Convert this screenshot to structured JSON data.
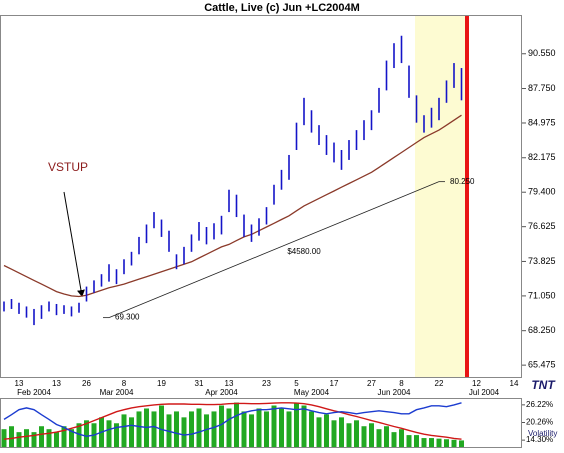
{
  "chart_data": [
    {
      "type": "ohlc",
      "title": "Cattle, Live (c) Jun +LC2004M",
      "categories": [
        null,
        null,
        "13",
        null,
        null,
        null,
        null,
        "13",
        null,
        null,
        null,
        "26",
        null,
        null,
        null,
        null,
        "8",
        null,
        null,
        null,
        null,
        "19",
        null,
        null,
        null,
        null,
        "31",
        null,
        null,
        null,
        "13",
        null,
        null,
        null,
        null,
        "23",
        null,
        null,
        null,
        "5",
        null,
        null,
        null,
        null,
        "17",
        null,
        null,
        null,
        null,
        "27",
        null,
        null,
        null,
        "8",
        null,
        null,
        null,
        null,
        "22",
        null,
        null,
        null,
        null,
        "12",
        null,
        null,
        null,
        null,
        "14",
        null
      ],
      "months": [
        null,
        null,
        null,
        null,
        "Feb 2004",
        null,
        null,
        null,
        null,
        null,
        null,
        null,
        null,
        null,
        null,
        "Mar 2004",
        null,
        null,
        null,
        null,
        null,
        null,
        null,
        null,
        null,
        null,
        null,
        null,
        null,
        "Apr 2004",
        null,
        null,
        null,
        null,
        null,
        null,
        null,
        null,
        null,
        null,
        null,
        "May 2004",
        null,
        null,
        null,
        null,
        null,
        null,
        null,
        null,
        null,
        null,
        "Jun 2004",
        null,
        null,
        null,
        null,
        null,
        null,
        null,
        null,
        null,
        null,
        null,
        "Jul 2004",
        null,
        null,
        null,
        null,
        null
      ],
      "ohlc": {
        "color": "#1414c8",
        "high": [
          70.6,
          70.8,
          70.5,
          70.2,
          70.0,
          70.3,
          70.6,
          70.4,
          70.3,
          70.2,
          70.5,
          71.8,
          72.3,
          72.8,
          73.6,
          73.2,
          74.0,
          74.6,
          75.8,
          76.8,
          77.8,
          77.2,
          76.3,
          74.4,
          75.0,
          76.0,
          77.0,
          76.6,
          76.9,
          77.5,
          79.6,
          79.2,
          77.6,
          76.8,
          77.3,
          78.2,
          80.0,
          81.2,
          82.4,
          85.0,
          87.0,
          86.0,
          84.8,
          84.0,
          83.4,
          82.8,
          83.6,
          84.4,
          85.2,
          86.0,
          87.8,
          90.0,
          91.4,
          92.0,
          89.6,
          87.2,
          85.6,
          86.2,
          87.0,
          88.4,
          89.8,
          89.4,
          null,
          null,
          null,
          null,
          null,
          null,
          null,
          null
        ],
        "low": [
          69.8,
          70.0,
          69.6,
          69.3,
          68.7,
          69.2,
          69.8,
          69.5,
          69.6,
          69.4,
          69.7,
          70.6,
          71.3,
          71.8,
          72.2,
          72.0,
          72.8,
          73.5,
          74.4,
          75.3,
          76.5,
          75.8,
          74.6,
          73.2,
          73.6,
          74.6,
          75.5,
          75.2,
          75.6,
          76.0,
          77.8,
          77.4,
          75.8,
          75.4,
          75.9,
          76.8,
          78.4,
          79.6,
          80.4,
          82.8,
          84.8,
          84.2,
          83.2,
          82.4,
          81.8,
          81.2,
          82.0,
          82.8,
          83.6,
          84.4,
          85.8,
          87.6,
          89.4,
          89.8,
          87.0,
          85.0,
          84.2,
          84.6,
          85.2,
          86.6,
          87.8,
          86.8,
          null,
          null,
          null,
          null,
          null,
          null,
          null,
          null
        ]
      },
      "moving_average": {
        "color": "#8b3a2a",
        "values": [
          73.5,
          73.2,
          72.9,
          72.6,
          72.3,
          72.0,
          71.7,
          71.4,
          71.2,
          71.05,
          71.0,
          71.1,
          71.3,
          71.5,
          71.7,
          71.85,
          72.0,
          72.2,
          72.4,
          72.6,
          72.8,
          73.0,
          73.2,
          73.4,
          73.6,
          73.8,
          74.1,
          74.4,
          74.7,
          75.0,
          75.2,
          75.5,
          75.8,
          76.0,
          76.3,
          76.6,
          76.9,
          77.2,
          77.5,
          77.9,
          78.3,
          78.6,
          78.9,
          79.2,
          79.5,
          79.8,
          80.1,
          80.4,
          80.7,
          81.0,
          81.4,
          81.8,
          82.2,
          82.6,
          83.0,
          83.4,
          83.8,
          84.1,
          84.4,
          84.8,
          85.2,
          85.6,
          null,
          null,
          null,
          null,
          null,
          null,
          null,
          null
        ]
      },
      "trendline": {
        "values": [
          69.3,
          80.25
        ],
        "value_labels": [
          "69.300",
          "80.250"
        ],
        "amount": "$4580.00"
      },
      "annotation": "VSTUP",
      "logo": "TNT",
      "ylim": [
        64.52,
        93.59
      ],
      "yticks": [
        {
          "value": 90.55,
          "label": "90.550"
        },
        {
          "value": 87.75,
          "label": "87.750"
        },
        {
          "value": 84.975,
          "label": "84.975"
        },
        {
          "value": 82.175,
          "label": "82.175"
        },
        {
          "value": 79.4,
          "label": "79.400"
        },
        {
          "value": 76.625,
          "label": "76.625"
        },
        {
          "value": 73.825,
          "label": "73.825"
        },
        {
          "value": 71.05,
          "label": "71.050"
        },
        {
          "value": 68.25,
          "label": "68.250"
        },
        {
          "value": 65.475,
          "label": "65.475"
        }
      ]
    },
    {
      "type": "combo",
      "label": "Volatility",
      "ylim": [
        11.98,
        28.2
      ],
      "yticks": [
        {
          "value": 26.22,
          "label": "26.22%"
        },
        {
          "value": 20.26,
          "label": "20.26%"
        },
        {
          "value": 14.3,
          "label": "14.30%"
        }
      ],
      "series": [
        {
          "kind": "bar",
          "color": "#22a822",
          "values": [
            18,
            19,
            17,
            18,
            17,
            19,
            18,
            17,
            19,
            18,
            20,
            21,
            20,
            22,
            21,
            20,
            23,
            22,
            24,
            25,
            24,
            26,
            23,
            24,
            22,
            24,
            25,
            23,
            24,
            26,
            25,
            27,
            24,
            23,
            25,
            24,
            26,
            25,
            24,
            27,
            26,
            24,
            22,
            23,
            21,
            22,
            20,
            21,
            19,
            20,
            18,
            19,
            17,
            18,
            16,
            16,
            15,
            15,
            14.8,
            14.6,
            14.4,
            14.2,
            null,
            null,
            null,
            null,
            null,
            null,
            null,
            null
          ]
        },
        {
          "kind": "line",
          "color": "#d01818",
          "values": [
            14.6,
            14.9,
            15.3,
            15.6,
            15.9,
            16.3,
            16.6,
            17.0,
            17.6,
            18.3,
            19.0,
            19.9,
            20.9,
            21.9,
            22.9,
            23.9,
            24.6,
            25.2,
            25.6,
            25.9,
            26.2,
            26.4,
            26.5,
            26.5,
            26.5,
            26.4,
            26.4,
            26.3,
            26.3,
            26.4,
            26.6,
            26.7,
            26.7,
            26.6,
            26.6,
            26.7,
            26.8,
            26.9,
            26.9,
            26.8,
            26.6,
            26.2,
            25.6,
            24.9,
            24.2,
            23.6,
            22.9,
            22.3,
            21.6,
            20.9,
            20.3,
            19.6,
            18.9,
            18.3,
            17.6,
            16.9,
            16.3,
            15.9,
            15.6,
            15.3,
            14.9,
            14.6,
            null,
            null,
            null,
            null,
            null,
            null,
            null,
            null
          ]
        },
        {
          "kind": "line",
          "color": "#1c3cd0",
          "values": [
            21.3,
            22.9,
            24.6,
            25.2,
            24.6,
            22.9,
            21.3,
            19.6,
            18.6,
            17.3,
            16.3,
            15.6,
            16.0,
            17.0,
            17.9,
            18.6,
            18.9,
            19.3,
            18.9,
            18.6,
            18.9,
            17.9,
            17.3,
            16.6,
            16.0,
            16.3,
            17.0,
            17.9,
            18.6,
            19.6,
            21.3,
            22.6,
            23.6,
            24.2,
            24.6,
            24.6,
            24.9,
            25.2,
            24.9,
            24.6,
            24.9,
            24.2,
            23.6,
            23.2,
            23.6,
            23.9,
            23.6,
            23.2,
            23.6,
            23.9,
            24.2,
            23.9,
            23.6,
            23.2,
            23.2,
            24.6,
            25.2,
            25.9,
            25.9,
            25.6,
            26.2,
            26.9,
            null,
            null,
            null,
            null,
            null,
            null,
            null,
            null
          ]
        }
      ]
    }
  ]
}
